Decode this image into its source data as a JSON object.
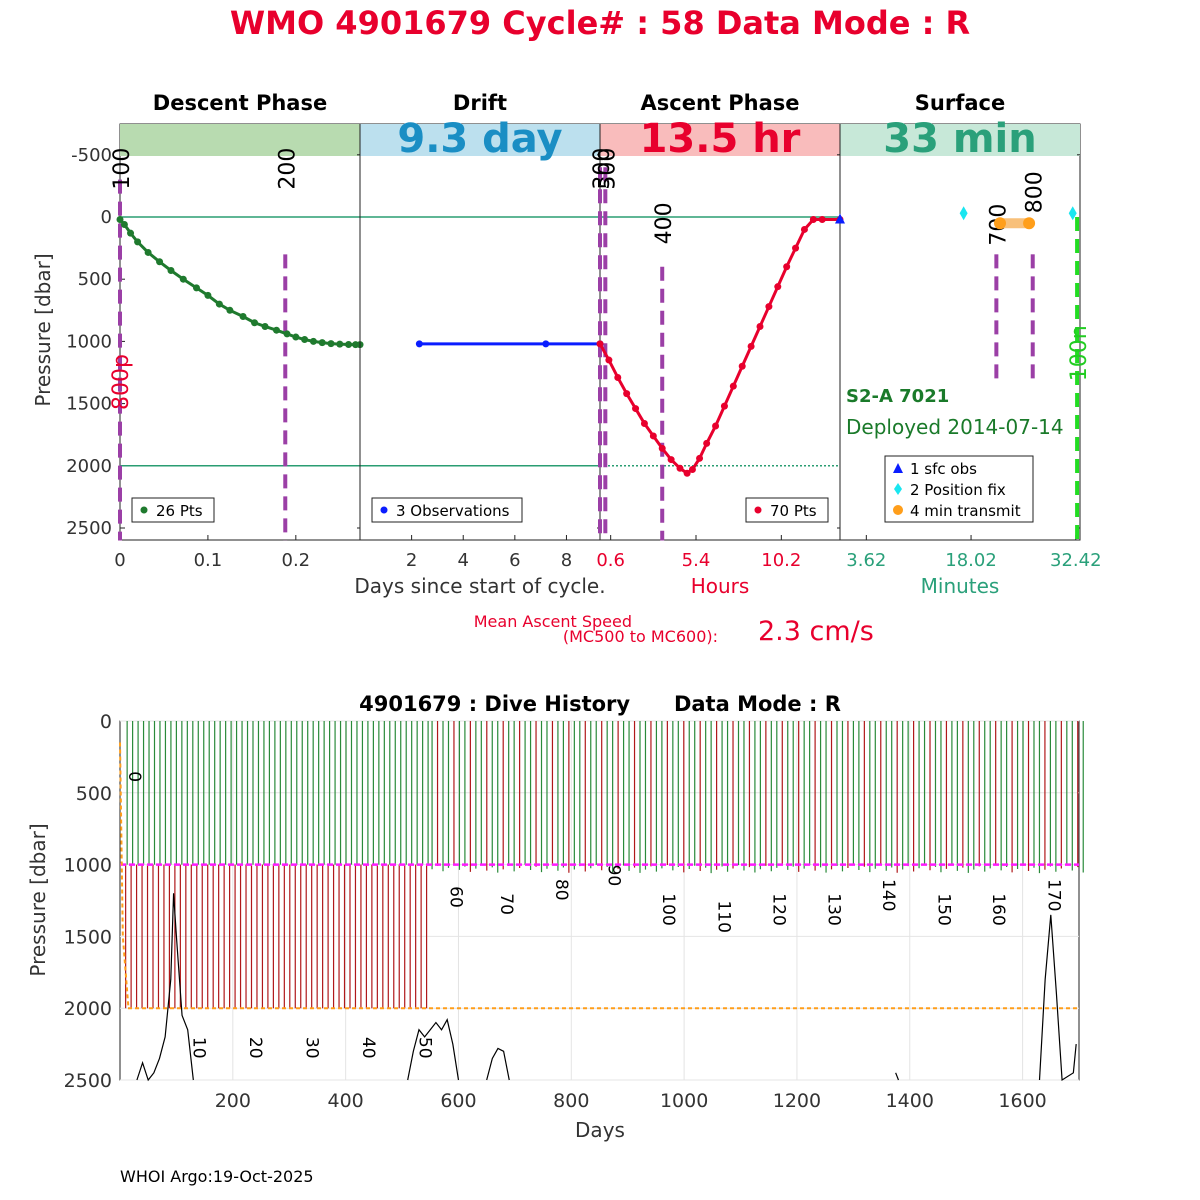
{
  "header": {
    "title": "WMO 4901679   Cycle# : 58   Data Mode : R",
    "title_color": "#e8002d"
  },
  "footer": {
    "credit": "WHOI Argo:19-Oct-2025"
  },
  "chart_data": [
    {
      "type": "line",
      "title": "",
      "ylabel": "Pressure [dbar]",
      "ylim": [
        -500,
        2600
      ],
      "yticks": [
        -500,
        0,
        500,
        1000,
        1500,
        2000,
        2500
      ],
      "panels": [
        {
          "name": "Descent Phase",
          "band_color": "#b8dbb0",
          "band_text": "",
          "xticks": [
            {
              "v": 0,
              "label": "0"
            },
            {
              "v": 0.1,
              "label": "0.1"
            },
            {
              "v": 0.2,
              "label": "0.2"
            }
          ],
          "xlim": [
            0,
            0.273
          ],
          "legend": "26 Pts",
          "legend_color": "#1f7a2e",
          "series_color": "#1f7a2e",
          "points": [
            [
              0,
              20
            ],
            [
              0.005,
              60
            ],
            [
              0.012,
              130
            ],
            [
              0.02,
              200
            ],
            [
              0.032,
              285
            ],
            [
              0.045,
              360
            ],
            [
              0.058,
              430
            ],
            [
              0.072,
              500
            ],
            [
              0.087,
              570
            ],
            [
              0.1,
              630
            ],
            [
              0.113,
              700
            ],
            [
              0.125,
              750
            ],
            [
              0.14,
              800
            ],
            [
              0.153,
              850
            ],
            [
              0.165,
              880
            ],
            [
              0.178,
              910
            ],
            [
              0.19,
              940
            ],
            [
              0.2,
              965
            ],
            [
              0.21,
              985
            ],
            [
              0.22,
              1000
            ],
            [
              0.23,
              1010
            ],
            [
              0.24,
              1018
            ],
            [
              0.25,
              1022
            ],
            [
              0.26,
              1025
            ],
            [
              0.268,
              1026
            ],
            [
              0.273,
              1026
            ]
          ],
          "markers": [
            {
              "v": 0,
              "label": "100",
              "ymin": -300,
              "ymax": 2600
            },
            {
              "v": 0.188,
              "label": "200",
              "ymin": 300,
              "ymax": 2600
            }
          ]
        },
        {
          "name": "Drift",
          "band_color": "#bce0ee",
          "band_text": "9.3 day",
          "band_text_color": "#1a8ec4",
          "xticks": [
            {
              "v": 2,
              "label": "2"
            },
            {
              "v": 4,
              "label": "4"
            },
            {
              "v": 6,
              "label": "6"
            },
            {
              "v": 8,
              "label": "8"
            }
          ],
          "xlim": [
            0,
            9.3
          ],
          "legend": "3 Observations",
          "legend_color": "#0a1dff",
          "series_color": "#0a1dff",
          "points": [
            [
              2.3,
              1020
            ],
            [
              7.2,
              1020
            ],
            [
              9.3,
              1020
            ]
          ],
          "markers": []
        },
        {
          "name": "Ascent Phase",
          "band_color": "#f9bcbc",
          "band_text": "13.5 hr",
          "band_text_color": "#e8002d",
          "xticks": [
            {
              "v": 0.6,
              "label": "0.6"
            },
            {
              "v": 5.4,
              "label": "5.4"
            },
            {
              "v": 10.2,
              "label": "10.2"
            }
          ],
          "xlabel": "Hours",
          "xlim": [
            0,
            13.5
          ],
          "legend": "70 Pts",
          "legend_color": "#e8002d",
          "series_color": "#e8002d",
          "points": [
            [
              0,
              1020
            ],
            [
              0.5,
              1150
            ],
            [
              1,
              1290
            ],
            [
              1.5,
              1420
            ],
            [
              2,
              1540
            ],
            [
              2.5,
              1660
            ],
            [
              3,
              1760
            ],
            [
              3.5,
              1860
            ],
            [
              4,
              1950
            ],
            [
              4.5,
              2020
            ],
            [
              4.9,
              2060
            ],
            [
              5.2,
              2030
            ],
            [
              5.6,
              1940
            ],
            [
              6,
              1820
            ],
            [
              6.5,
              1680
            ],
            [
              7,
              1520
            ],
            [
              7.5,
              1360
            ],
            [
              8,
              1200
            ],
            [
              8.5,
              1040
            ],
            [
              9,
              880
            ],
            [
              9.5,
              720
            ],
            [
              10,
              560
            ],
            [
              10.5,
              400
            ],
            [
              11,
              250
            ],
            [
              11.5,
              100
            ],
            [
              12,
              20
            ],
            [
              12.5,
              20
            ],
            [
              13.5,
              20
            ]
          ],
          "markers": [
            {
              "v": 0,
              "label": "300",
              "ymin": -400,
              "ymax": 2600
            },
            {
              "v": 0.3,
              "label": "500",
              "ymin": -400,
              "ymax": 2600
            },
            {
              "v": 3.5,
              "label": "400",
              "ymin": 400,
              "ymax": 2600
            }
          ]
        },
        {
          "name": "Surface",
          "band_color": "#c7e8d8",
          "band_text": "33 min",
          "band_text_color": "#2aa07a",
          "xticks": [
            {
              "v": 3.62,
              "label": "3.62"
            },
            {
              "v": 18.02,
              "label": "18.02"
            },
            {
              "v": 32.42,
              "label": "32.42"
            }
          ],
          "xlabel": "Minutes",
          "xlim": [
            0,
            33
          ],
          "markers": [
            {
              "v": 21.5,
              "label": "700",
              "ymin": 300,
              "ymax": 1300
            },
            {
              "v": 26.5,
              "label": "800",
              "ymin": 300,
              "ymax": 1300
            },
            {
              "v": 32.6,
              "label": "100n",
              "ymin": 0,
              "ymax": 2600
            }
          ],
          "sfc_obs": [
            [
              0,
              20
            ]
          ],
          "position_fix": [
            [
              17.0,
              -30
            ],
            [
              32.0,
              -30
            ]
          ],
          "transmit": [
            [
              22.0,
              50
            ],
            [
              26.0,
              50
            ]
          ],
          "legend_items": [
            {
              "label": "1 sfc obs",
              "color": "#0a1dff",
              "shape": "triangle"
            },
            {
              "label": "2 Position fix",
              "color": "#19e6f0",
              "shape": "diamond"
            },
            {
              "label": "4 min transmit",
              "color": "#ff9e1a",
              "shape": "circle"
            }
          ]
        }
      ],
      "axis_note": "Days since start of cycle.",
      "red_label": "800p",
      "float_name": "S2-A 7021",
      "deployed": "Deployed 2014-07-14",
      "mean_ascent_label_1": "Mean Ascent Speed",
      "mean_ascent_label_2": "(MC500 to MC600):",
      "mean_ascent_value": "2.3 cm/s"
    },
    {
      "type": "line",
      "title": "4901679 : Dive History      Data Mode : R",
      "xlabel": "Days",
      "ylabel": "Pressure [dbar]",
      "xlim": [
        0,
        1700
      ],
      "ylim": [
        0,
        2500
      ],
      "xticks": [
        200,
        400,
        600,
        800,
        1000,
        1200,
        1400,
        1600
      ],
      "yticks": [
        0,
        500,
        1000,
        1500,
        2000,
        2500
      ],
      "park_pressure": 1000,
      "profile_pressure": 2000,
      "cycle_labels": [
        {
          "cycle": "0",
          "day": 5,
          "p": 350
        },
        {
          "cycle": "10",
          "day": 120,
          "p": 2200
        },
        {
          "cycle": "20",
          "day": 220,
          "p": 2200
        },
        {
          "cycle": "30",
          "day": 320,
          "p": 2200
        },
        {
          "cycle": "40",
          "day": 420,
          "p": 2200
        },
        {
          "cycle": "50",
          "day": 520,
          "p": 2200
        },
        {
          "cycle": "60",
          "day": 575,
          "p": 1150
        },
        {
          "cycle": "70",
          "day": 665,
          "p": 1200
        },
        {
          "cycle": "80",
          "day": 762,
          "p": 1100
        },
        {
          "cycle": "90",
          "day": 855,
          "p": 1000
        },
        {
          "cycle": "100",
          "day": 952,
          "p": 1200
        },
        {
          "cycle": "110",
          "day": 1050,
          "p": 1250
        },
        {
          "cycle": "120",
          "day": 1148,
          "p": 1200
        },
        {
          "cycle": "130",
          "day": 1245,
          "p": 1200
        },
        {
          "cycle": "140",
          "day": 1342,
          "p": 1100
        },
        {
          "cycle": "150",
          "day": 1440,
          "p": 1200
        },
        {
          "cycle": "160",
          "day": 1537,
          "p": 1200
        },
        {
          "cycle": "170",
          "day": 1635,
          "p": 1100
        }
      ],
      "deep_profile_end_day": 552,
      "total_days": 1700,
      "cycle_interval_days": 9.7,
      "bottom_trace": [
        [
          30,
          2500
        ],
        [
          40,
          2380
        ],
        [
          50,
          2500
        ],
        [
          60,
          2450
        ],
        [
          70,
          2350
        ],
        [
          80,
          2200
        ],
        [
          90,
          1800
        ],
        [
          95,
          1200
        ],
        [
          100,
          1500
        ],
        [
          110,
          2050
        ],
        [
          120,
          2150
        ],
        [
          130,
          2500
        ],
        [
          510,
          2500
        ],
        [
          520,
          2300
        ],
        [
          530,
          2150
        ],
        [
          540,
          2200
        ],
        [
          550,
          2150
        ],
        [
          560,
          2100
        ],
        [
          570,
          2150
        ],
        [
          580,
          2080
        ],
        [
          590,
          2250
        ],
        [
          600,
          2500
        ],
        [
          650,
          2500
        ],
        [
          660,
          2350
        ],
        [
          670,
          2280
        ],
        [
          680,
          2300
        ],
        [
          690,
          2500
        ],
        [
          1375,
          2450
        ],
        [
          1380,
          2500
        ],
        [
          1630,
          2500
        ],
        [
          1640,
          1800
        ],
        [
          1650,
          1350
        ],
        [
          1660,
          1900
        ],
        [
          1670,
          2500
        ],
        [
          1690,
          2450
        ],
        [
          1695,
          2250
        ]
      ]
    }
  ]
}
